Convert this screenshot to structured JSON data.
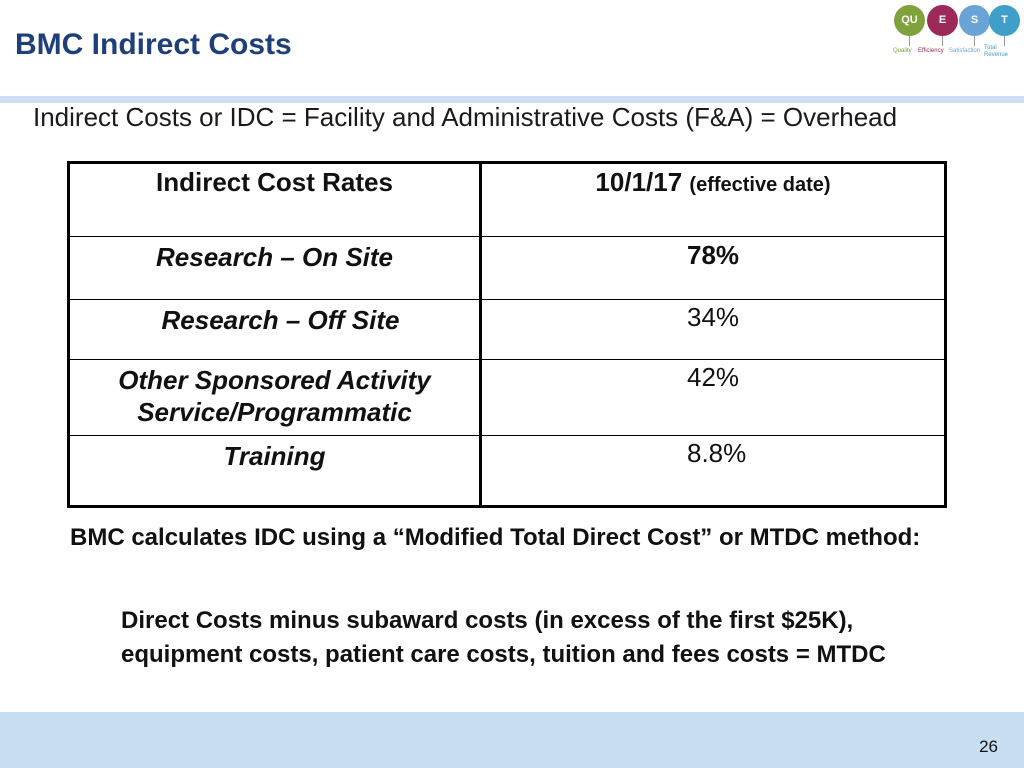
{
  "slide": {
    "title": "BMC Indirect Costs",
    "subtitle": "Indirect Costs or IDC = Facility and Administrative Costs (F&A) = Overhead",
    "page_number": "26"
  },
  "logo": {
    "circles": [
      {
        "label": "QU",
        "color": "#7fa23a"
      },
      {
        "label": "E",
        "color": "#9b2a5a"
      },
      {
        "label": "S",
        "color": "#6aa3d8"
      },
      {
        "label": "T",
        "color": "#3f9fc9"
      }
    ],
    "words": [
      {
        "label": "Quality",
        "color": "#7fa23a"
      },
      {
        "label": "Efficiency",
        "color": "#9b2a5a"
      },
      {
        "label": "Satisfaction",
        "color": "#6aa3d8"
      },
      {
        "label": "Total Revenue",
        "color": "#3f9fc9"
      }
    ]
  },
  "table": {
    "header_left": "Indirect Cost Rates",
    "header_right_main": "10/1/17",
    "header_right_small": "(effective date)",
    "rows": [
      {
        "category": "Research – On Site",
        "value": "78%",
        "bold": true
      },
      {
        "category": "Research – Off Site",
        "value": "34%",
        "bold": false
      },
      {
        "category": "Other Sponsored Activity Service/Programmatic",
        "value": "42%",
        "bold": false
      },
      {
        "category": "Training",
        "value": "8.8%",
        "bold": false
      }
    ]
  },
  "body": {
    "paragraph1": "BMC calculates IDC using a “Modified Total Direct Cost” or MTDC method:",
    "paragraph2": "Direct Costs minus subaward costs (in excess of the first $25K), equipment costs, patient care costs, tuition and fees costs = MTDC"
  },
  "colors": {
    "title": "#1f3f7a",
    "band": "#cfe0f3",
    "footer": "#c8dff3"
  }
}
